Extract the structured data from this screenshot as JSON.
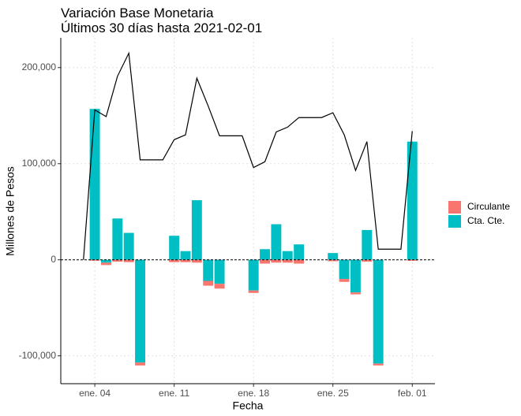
{
  "chart_data": {
    "type": "bar",
    "title": "Variación Base Monetaria",
    "subtitle": "Últimos 30 días hasta 2021-02-01",
    "xlabel": "Fecha",
    "ylabel": "Millones de Pesos",
    "x": [
      "2021-01-03",
      "2021-01-04",
      "2021-01-05",
      "2021-01-06",
      "2021-01-07",
      "2021-01-08",
      "2021-01-09",
      "2021-01-10",
      "2021-01-11",
      "2021-01-12",
      "2021-01-13",
      "2021-01-14",
      "2021-01-15",
      "2021-01-16",
      "2021-01-17",
      "2021-01-18",
      "2021-01-19",
      "2021-01-20",
      "2021-01-21",
      "2021-01-22",
      "2021-01-23",
      "2021-01-24",
      "2021-01-25",
      "2021-01-26",
      "2021-01-27",
      "2021-01-28",
      "2021-01-29",
      "2021-01-30",
      "2021-01-31",
      "2021-02-01"
    ],
    "series": [
      {
        "name": "Circulante",
        "color": "#F8766D",
        "values": [
          null,
          -1000,
          -2500,
          -2000,
          -2500,
          -3000,
          null,
          null,
          -2500,
          -2500,
          -3000,
          -5000,
          -5000,
          null,
          null,
          -2500,
          -4000,
          -3000,
          -3000,
          -4000,
          null,
          null,
          -1500,
          -3000,
          -2000,
          -2000,
          -2000,
          null,
          null,
          -1000
        ]
      },
      {
        "name": "Cta. Cte.",
        "color": "#00BFC4",
        "values": [
          null,
          157000,
          -3000,
          43000,
          28000,
          -107000,
          null,
          null,
          25000,
          9000,
          62000,
          -22000,
          -25000,
          null,
          null,
          -32000,
          11000,
          37000,
          9000,
          16000,
          null,
          null,
          7000,
          -20000,
          -34000,
          31000,
          -108000,
          null,
          null,
          123000
        ]
      }
    ],
    "line": {
      "color": "#000000",
      "values": [
        0,
        156000,
        149000,
        191000,
        215000,
        104000,
        104000,
        104000,
        125000,
        130000,
        189000,
        160000,
        129000,
        129000,
        129000,
        96000,
        102000,
        133000,
        138000,
        148000,
        148000,
        148000,
        153000,
        130000,
        93000,
        123000,
        11000,
        11000,
        11000,
        134000
      ]
    },
    "xlim": [
      "2021-01-01",
      "2021-02-03"
    ],
    "xticks": [
      {
        "value": "2021-01-04",
        "label": "ene. 04"
      },
      {
        "value": "2021-01-11",
        "label": "ene. 11"
      },
      {
        "value": "2021-01-18",
        "label": "ene. 18"
      },
      {
        "value": "2021-01-25",
        "label": "ene. 25"
      },
      {
        "value": "2021-02-01",
        "label": "feb. 01"
      }
    ],
    "ylim": [
      -129000,
      231000
    ],
    "yticks": [
      {
        "value": -100000,
        "label": "-100,000"
      },
      0,
      {
        "value": 100000,
        "label": "100,000"
      },
      {
        "value": 200000,
        "label": "200,000"
      }
    ],
    "grid": true,
    "legend": "right"
  }
}
